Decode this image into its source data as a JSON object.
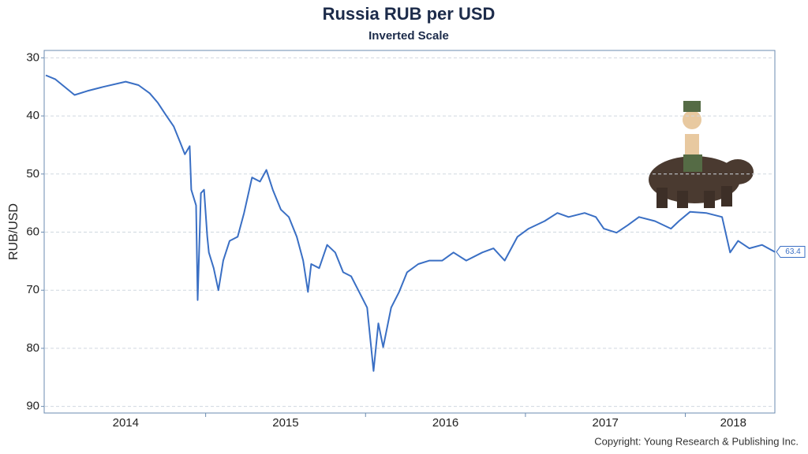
{
  "chart_data": {
    "type": "line",
    "title": "Russia RUB per USD",
    "subtitle": "Inverted Scale",
    "y_label": "RUB/USD",
    "source": "Copyright: Young Research & Publishing Inc.",
    "ylim": [
      29,
      91
    ],
    "y_inverted": true,
    "yticks": [
      30,
      40,
      50,
      60,
      70,
      80,
      90
    ],
    "grid": true,
    "xlim": [
      2014,
      2018.56
    ],
    "xticks": [
      {
        "value": 2014.5,
        "label": "2014"
      },
      {
        "value": 2015.5,
        "label": "2015"
      },
      {
        "value": 2016.5,
        "label": "2016"
      },
      {
        "value": 2017.5,
        "label": "2017"
      },
      {
        "value": 2018.3,
        "label": "2018"
      }
    ],
    "xtick_marks": [
      2015,
      2016,
      2017,
      2018
    ],
    "series": [
      {
        "name": "RUB/USD",
        "color": "#3a6fc4",
        "x": [
          2014.0,
          2014.06,
          2014.18,
          2014.26,
          2014.36,
          2014.5,
          2014.58,
          2014.65,
          2014.7,
          2014.75,
          2014.8,
          2014.84,
          2014.87,
          2014.9,
          2014.91,
          2014.94,
          2014.95,
          2014.97,
          2014.99,
          2015.01,
          2015.02,
          2015.05,
          2015.08,
          2015.11,
          2015.15,
          2015.2,
          2015.24,
          2015.29,
          2015.34,
          2015.38,
          2015.42,
          2015.47,
          2015.52,
          2015.57,
          2015.61,
          2015.64,
          2015.66,
          2015.71,
          2015.76,
          2015.81,
          2015.86,
          2015.91,
          2015.96,
          2016.01,
          2016.03,
          2016.05,
          2016.08,
          2016.11,
          2016.16,
          2016.21,
          2016.26,
          2016.33,
          2016.4,
          2016.48,
          2016.55,
          2016.63,
          2016.73,
          2016.8,
          2016.87,
          2016.95,
          2017.02,
          2017.12,
          2017.2,
          2017.27,
          2017.37,
          2017.44,
          2017.49,
          2017.57,
          2017.64,
          2017.71,
          2017.81,
          2017.91,
          2017.96,
          2018.03,
          2018.13,
          2018.23,
          2018.28,
          2018.33,
          2018.4,
          2018.48,
          2018.56
        ],
        "values": [
          33.0,
          33.7,
          36.4,
          35.7,
          35.0,
          34.1,
          34.7,
          36.1,
          37.7,
          39.8,
          41.8,
          44.5,
          46.6,
          45.2,
          52.7,
          55.4,
          71.7,
          53.3,
          52.7,
          60.8,
          63.5,
          66.2,
          70.0,
          64.9,
          61.5,
          60.8,
          56.7,
          50.6,
          51.3,
          49.3,
          52.7,
          56.1,
          57.4,
          60.8,
          64.9,
          70.3,
          65.5,
          66.2,
          62.2,
          63.5,
          66.9,
          67.6,
          70.3,
          73.0,
          78.4,
          83.9,
          75.7,
          79.8,
          73.0,
          70.3,
          66.9,
          65.5,
          64.9,
          64.9,
          63.5,
          64.9,
          63.5,
          62.8,
          64.9,
          60.8,
          59.4,
          58.1,
          56.7,
          57.4,
          56.7,
          57.4,
          59.4,
          60.1,
          58.8,
          57.4,
          58.1,
          59.4,
          58.1,
          56.5,
          56.7,
          57.4,
          63.5,
          61.5,
          62.8,
          62.2,
          63.4
        ]
      }
    ]
  }
}
